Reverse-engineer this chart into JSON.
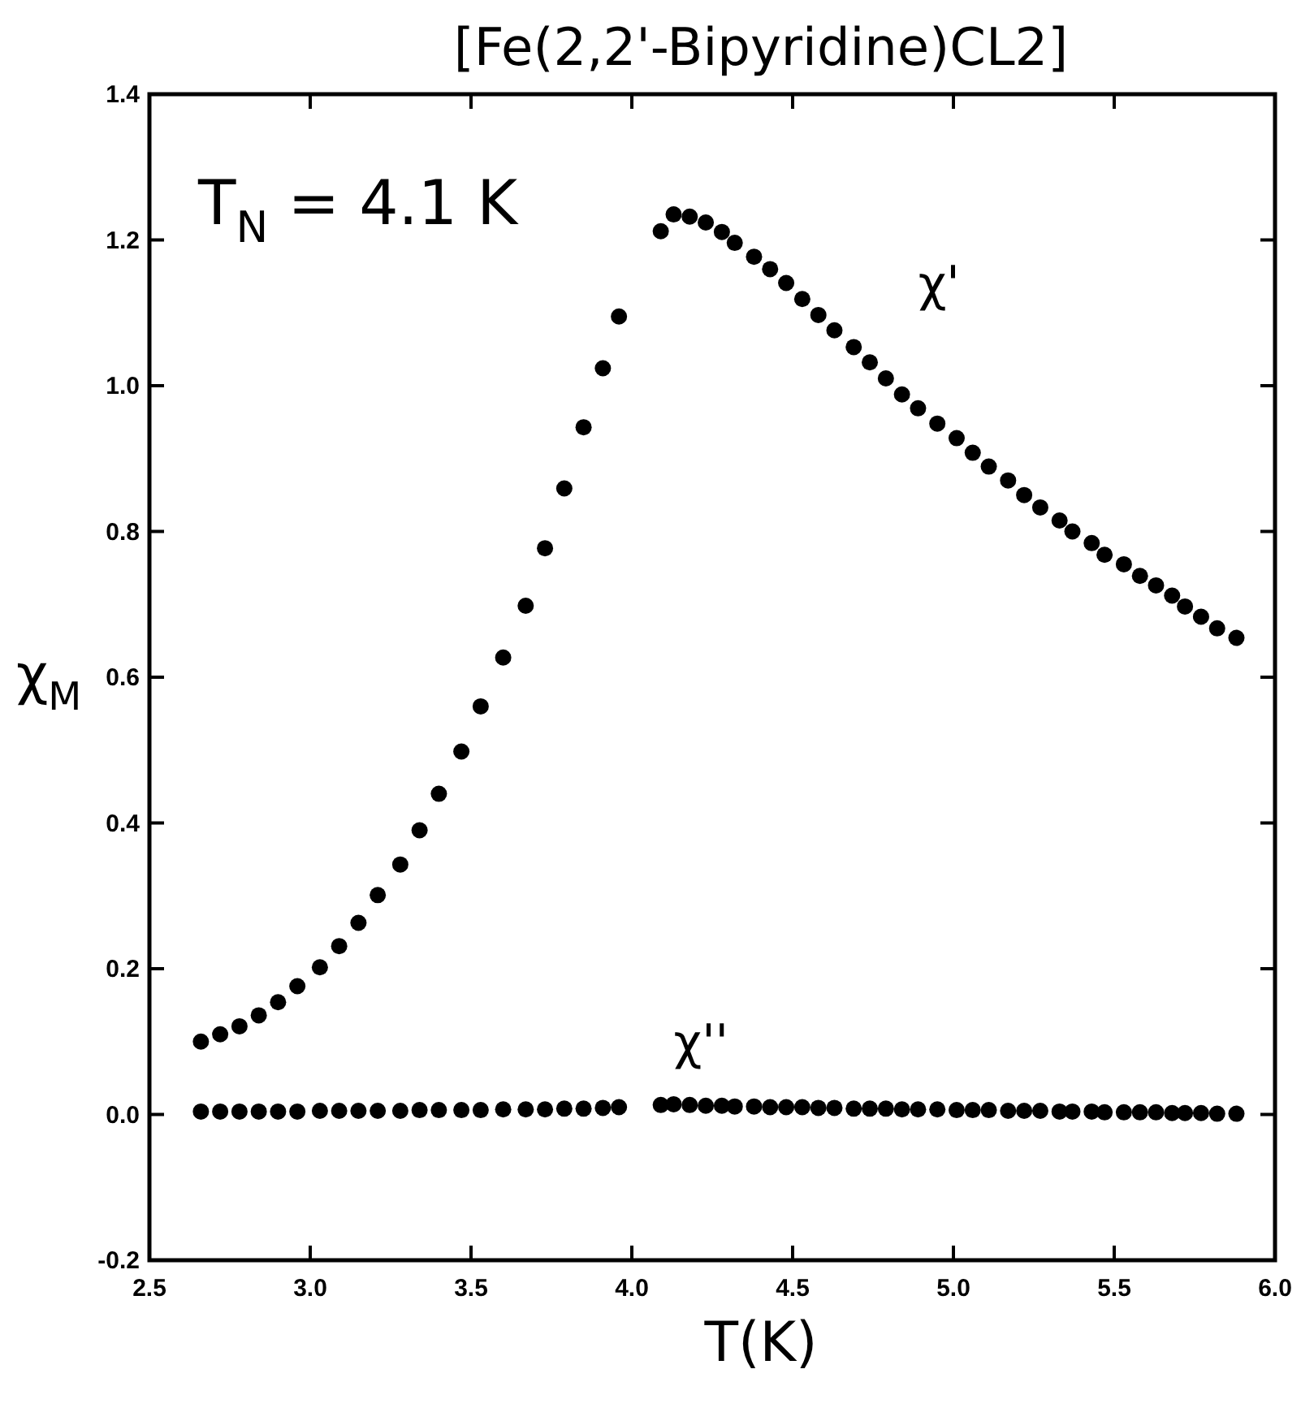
{
  "chart_data": {
    "type": "scatter",
    "title": "[Fe(2,2'-Bipyridine)CL2]",
    "xlabel": "T(K)",
    "ylabel": "χ$_{M}$",
    "annotations": [
      "T$_{N}$ = 4.1 K"
    ],
    "xlim": [
      2.5,
      6.0
    ],
    "xticks": [
      2.5,
      {
        "value": 3,
        "label": "3.0"
      },
      3.5,
      {
        "value": 4,
        "label": "4.0"
      },
      4.5,
      {
        "value": 5,
        "label": "5.0"
      },
      5.5,
      {
        "value": 6,
        "label": "6.0"
      }
    ],
    "ylim": [
      -0.2,
      1.4
    ],
    "yticks": [
      -0.2,
      {
        "value": 0,
        "label": "0.0"
      },
      0.2,
      0.4,
      0.6,
      0.8,
      {
        "value": 1,
        "label": "1.0"
      },
      1.2,
      1.4
    ],
    "marker": "circle",
    "grid": false,
    "series": [
      {
        "name": "χ'",
        "color": "#000000",
        "x": [
          2.66,
          2.72,
          2.78,
          2.84,
          2.9,
          2.96,
          3.03,
          3.09,
          3.15,
          3.21,
          3.28,
          3.34,
          3.4,
          3.47,
          3.53,
          3.6,
          3.67,
          3.73,
          3.79,
          3.85,
          3.91,
          3.96,
          4.09,
          4.13,
          4.18,
          4.23,
          4.28,
          4.32,
          4.38,
          4.43,
          4.48,
          4.53,
          4.58,
          4.63,
          4.69,
          4.74,
          4.79,
          4.84,
          4.89,
          4.95,
          5.01,
          5.06,
          5.11,
          5.17,
          5.22,
          5.27,
          5.33,
          5.37,
          5.43,
          5.47,
          5.53,
          5.58,
          5.63,
          5.68,
          5.72,
          5.77,
          5.82,
          5.88
        ],
        "values": [
          0.1,
          0.11,
          0.121,
          0.136,
          0.154,
          0.176,
          0.202,
          0.231,
          0.263,
          0.301,
          0.343,
          0.39,
          0.44,
          0.498,
          0.56,
          0.627,
          0.698,
          0.777,
          0.859,
          0.943,
          1.024,
          1.095,
          1.212,
          1.235,
          1.232,
          1.224,
          1.211,
          1.196,
          1.177,
          1.16,
          1.141,
          1.119,
          1.097,
          1.076,
          1.053,
          1.032,
          1.01,
          0.988,
          0.969,
          0.948,
          0.928,
          0.908,
          0.889,
          0.87,
          0.85,
          0.833,
          0.815,
          0.8,
          0.784,
          0.768,
          0.755,
          0.739,
          0.726,
          0.712,
          0.697,
          0.683,
          0.667,
          0.654
        ]
      },
      {
        "name": "χ''",
        "color": "#000000",
        "x": [
          2.66,
          2.72,
          2.78,
          2.84,
          2.9,
          2.96,
          3.03,
          3.09,
          3.15,
          3.21,
          3.28,
          3.34,
          3.4,
          3.47,
          3.53,
          3.6,
          3.67,
          3.73,
          3.79,
          3.85,
          3.91,
          3.96,
          4.09,
          4.13,
          4.18,
          4.23,
          4.28,
          4.32,
          4.38,
          4.43,
          4.48,
          4.53,
          4.58,
          4.63,
          4.69,
          4.74,
          4.79,
          4.84,
          4.89,
          4.95,
          5.01,
          5.06,
          5.11,
          5.17,
          5.22,
          5.27,
          5.33,
          5.37,
          5.43,
          5.47,
          5.53,
          5.58,
          5.63,
          5.68,
          5.72,
          5.77,
          5.82,
          5.88
        ],
        "values": [
          0.004,
          0.004,
          0.004,
          0.004,
          0.004,
          0.004,
          0.005,
          0.005,
          0.005,
          0.005,
          0.005,
          0.006,
          0.006,
          0.006,
          0.006,
          0.007,
          0.007,
          0.007,
          0.008,
          0.008,
          0.009,
          0.01,
          0.013,
          0.014,
          0.013,
          0.012,
          0.012,
          0.011,
          0.011,
          0.01,
          0.01,
          0.01,
          0.009,
          0.009,
          0.008,
          0.008,
          0.008,
          0.007,
          0.007,
          0.007,
          0.006,
          0.006,
          0.006,
          0.005,
          0.005,
          0.005,
          0.004,
          0.004,
          0.004,
          0.003,
          0.003,
          0.003,
          0.003,
          0.002,
          0.002,
          0.002,
          0.001,
          0.001
        ]
      }
    ]
  }
}
